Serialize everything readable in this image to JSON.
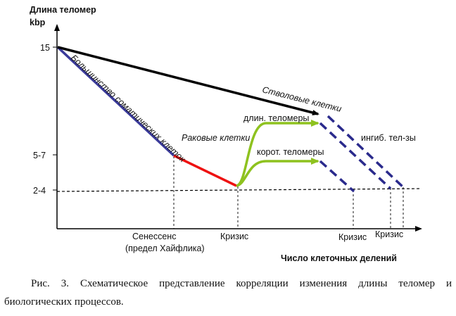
{
  "diagram": {
    "y_axis_title_line1": "Длина теломер",
    "y_axis_title_line2": "kbp",
    "x_axis_title": "Число клеточных делений",
    "y_ticks": [
      "15",
      "5-7",
      "2-4"
    ],
    "lines": {
      "somatic": "Большинство соматических клеток",
      "stem": "Стволовые клетки",
      "cancer": "Раковые клетки",
      "long": "длин. теломеры",
      "short": "корот. теломеры",
      "inhib": "ингиб. тел-зы"
    },
    "x_events": {
      "senescence_line1": "Сенессенс",
      "senescence_line2": "(предел Хайфлика)",
      "crisis": "Кризис"
    },
    "colors": {
      "somatic": "#3a3a9a",
      "stem": "#000000",
      "red": "#ee1111",
      "green": "#8ec21f",
      "dashed_blue": "#2a2a8c"
    }
  },
  "caption": "Рис. 3. Схематическое представление корреляции изменения длины теломер и биологических процессов."
}
